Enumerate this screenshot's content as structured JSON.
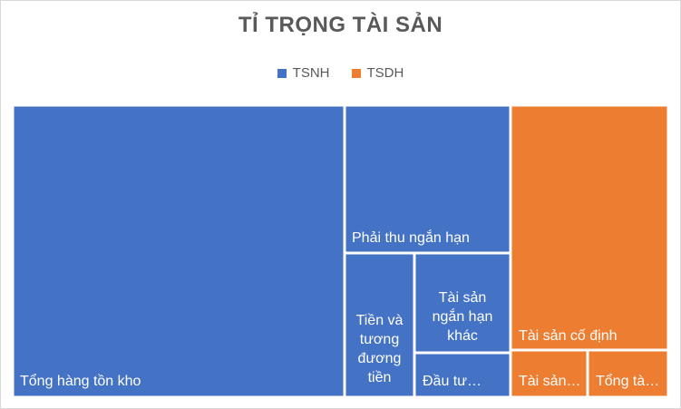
{
  "chart_data": {
    "type": "treemap",
    "title": "TỈ TRỌNG TÀI SẢN",
    "legend": [
      {
        "name": "TSNH",
        "color": "#4472c4"
      },
      {
        "name": "TSDH",
        "color": "#ed7d31"
      }
    ],
    "legend_position": "top",
    "series": [
      {
        "name": "TSNH",
        "color": "#4472c4",
        "items": [
          {
            "label": "Tổng hàng tồn kho",
            "value": 111
          },
          {
            "label": "Phải thu ngắn hạn",
            "value": 26.5
          },
          {
            "label": "Tiền và tương đương tiền",
            "value": 10.9
          },
          {
            "label": "Tài sản ngắn hạn khác",
            "value": 9.8
          },
          {
            "label": "Đầu tư…",
            "value": 4.2
          }
        ]
      },
      {
        "name": "TSDH",
        "color": "#ed7d31",
        "items": [
          {
            "label": "Tài sản cố định",
            "value": 46
          },
          {
            "label": "Tài sản…",
            "value": 5.1
          },
          {
            "label": "Tổng tà…",
            "value": 5.2
          }
        ]
      }
    ]
  }
}
